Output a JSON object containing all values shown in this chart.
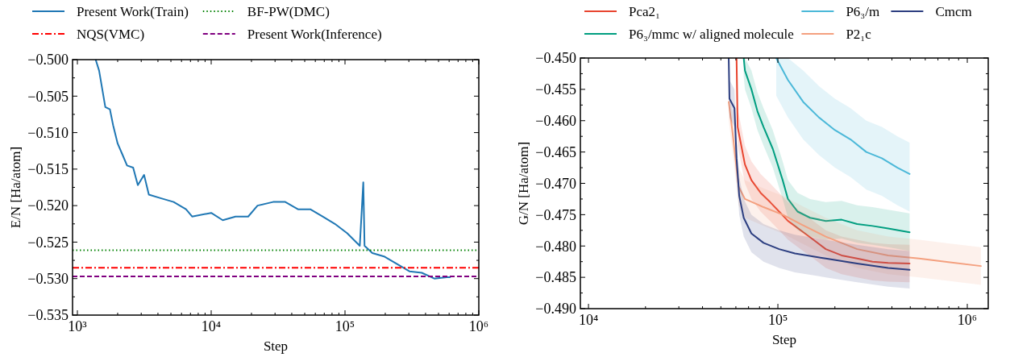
{
  "chart_data": [
    {
      "type": "line",
      "xlabel": "Step",
      "ylabel": "E/N [Ha/atom]",
      "log": "x",
      "grid": false,
      "legend": "top",
      "xlim": [
        920,
        1000000
      ],
      "ylim": [
        -0.535,
        -0.5
      ],
      "xticks": [
        {
          "value": 1000,
          "label": "10³"
        },
        {
          "value": 10000,
          "label": "10⁴"
        },
        {
          "value": 100000,
          "label": "10⁵"
        },
        {
          "value": 1000000,
          "label": "10⁶"
        }
      ],
      "yticks": [
        {
          "value": -0.535,
          "label": "−0.535"
        },
        {
          "value": -0.53,
          "label": "−0.530"
        },
        {
          "value": -0.525,
          "label": "−0.525"
        },
        {
          "value": -0.52,
          "label": "−0.520"
        },
        {
          "value": -0.515,
          "label": "−0.515"
        },
        {
          "value": -0.51,
          "label": "−0.510"
        },
        {
          "value": -0.505,
          "label": "−0.505"
        },
        {
          "value": -0.5,
          "label": "−0.500"
        }
      ],
      "series": [
        {
          "name": "Present Work(Train)",
          "color": "#1f77b4",
          "line_style": "solid",
          "x": [
            1370,
            1453,
            1617,
            1750,
            1850,
            2000,
            2170,
            2350,
            2610,
            2830,
            3150,
            3420,
            4230,
            5240,
            6480,
            7200,
            10000,
            12200,
            15200,
            18900,
            22200,
            29000,
            35800,
            44500,
            55000,
            68000,
            84000,
            104000,
            129000,
            137000,
            140000,
            160000,
            198000,
            245000,
            303000,
            375000,
            465000,
            575000,
            610000
          ],
          "values": [
            -0.5,
            -0.5015,
            -0.5065,
            -0.5068,
            -0.509,
            -0.5115,
            -0.513,
            -0.5145,
            -0.5148,
            -0.5172,
            -0.5158,
            -0.5185,
            -0.519,
            -0.5195,
            -0.5205,
            -0.5215,
            -0.521,
            -0.522,
            -0.5215,
            -0.5215,
            -0.52,
            -0.5195,
            -0.5195,
            -0.5205,
            -0.5205,
            -0.5215,
            -0.5225,
            -0.5238,
            -0.5255,
            -0.5168,
            -0.5255,
            -0.5265,
            -0.527,
            -0.528,
            -0.529,
            -0.5292,
            -0.53,
            -0.5298,
            -0.5298
          ]
        }
      ],
      "ref_lines": [
        {
          "axis": "y",
          "value": -0.5285,
          "label": "NQS(VMC)",
          "color": "#ff0000",
          "line_style": "dashdot"
        },
        {
          "axis": "y",
          "value": -0.5261,
          "label": "BF-PW(DMC)",
          "color": "#008000",
          "line_style": "dotted"
        },
        {
          "axis": "y",
          "value": -0.5297,
          "label": "Present Work(Inference)",
          "color": "#800080",
          "line_style": "dashed"
        }
      ]
    },
    {
      "type": "line",
      "xlabel": "Step",
      "ylabel": "G/N [Ha/atom]",
      "log": "x",
      "grid": false,
      "legend": "top",
      "xlim": [
        9060,
        1290000
      ],
      "ylim": [
        -0.49,
        -0.45
      ],
      "xticks": [
        {
          "value": 10000,
          "label": "10⁴"
        },
        {
          "value": 100000,
          "label": "10⁵"
        },
        {
          "value": 1000000,
          "label": "10⁶"
        }
      ],
      "yticks": [
        {
          "value": -0.49,
          "label": "−0.490"
        },
        {
          "value": -0.485,
          "label": "−0.485"
        },
        {
          "value": -0.48,
          "label": "−0.480"
        },
        {
          "value": -0.475,
          "label": "−0.475"
        },
        {
          "value": -0.47,
          "label": "−0.470"
        },
        {
          "value": -0.465,
          "label": "−0.465"
        },
        {
          "value": -0.46,
          "label": "−0.460"
        },
        {
          "value": -0.455,
          "label": "−0.455"
        },
        {
          "value": -0.45,
          "label": "−0.450"
        }
      ],
      "series": [
        {
          "name": "Pca2₁",
          "color": "#e8452f",
          "line_style": "solid",
          "x": [
            60500,
            61300,
            67000,
            72500,
            81000,
            91000,
            101500,
            113000,
            132000,
            154000,
            179000,
            217000,
            262000,
            316000,
            382000,
            496000
          ],
          "values": [
            -0.45,
            -0.461,
            -0.467,
            -0.4695,
            -0.4715,
            -0.473,
            -0.4745,
            -0.476,
            -0.4775,
            -0.479,
            -0.4805,
            -0.4815,
            -0.482,
            -0.4825,
            -0.4827,
            -0.4828
          ],
          "lower": [
            -0.453,
            -0.464,
            -0.47,
            -0.4725,
            -0.4745,
            -0.476,
            -0.4775,
            -0.479,
            -0.4805,
            -0.482,
            -0.4835,
            -0.4845,
            -0.485,
            -0.4855,
            -0.4857,
            -0.4858
          ],
          "upper": [
            -0.45,
            -0.458,
            -0.464,
            -0.4665,
            -0.4685,
            -0.47,
            -0.4715,
            -0.473,
            -0.4745,
            -0.476,
            -0.4775,
            -0.4785,
            -0.479,
            -0.4795,
            -0.4797,
            -0.4798
          ]
        },
        {
          "name": "P6₃/mmc w/ aligned molecule",
          "color": "#009e80",
          "line_style": "solid",
          "x": [
            66000,
            67000,
            72500,
            78000,
            84000,
            94000,
            106000,
            113000,
            127000,
            148000,
            179000,
            217000,
            262000,
            316000,
            382000,
            496000
          ],
          "values": [
            -0.45,
            -0.452,
            -0.455,
            -0.4585,
            -0.461,
            -0.4645,
            -0.4695,
            -0.4725,
            -0.4745,
            -0.4755,
            -0.476,
            -0.4758,
            -0.4765,
            -0.4768,
            -0.4772,
            -0.4778
          ],
          "lower": [
            -0.453,
            -0.455,
            -0.458,
            -0.4615,
            -0.464,
            -0.4675,
            -0.4725,
            -0.4755,
            -0.4775,
            -0.4785,
            -0.479,
            -0.4788,
            -0.4795,
            -0.4798,
            -0.4802,
            -0.4808
          ],
          "upper": [
            -0.45,
            -0.45,
            -0.452,
            -0.4555,
            -0.458,
            -0.4615,
            -0.4665,
            -0.4695,
            -0.4715,
            -0.4725,
            -0.473,
            -0.4728,
            -0.4735,
            -0.4738,
            -0.4742,
            -0.4748
          ]
        },
        {
          "name": "P6₃/m",
          "color": "#4bb8d8",
          "line_style": "solid",
          "x": [
            98000,
            113000,
            136000,
            165000,
            200000,
            242000,
            293000,
            354000,
            428000,
            496000
          ],
          "values": [
            -0.45,
            -0.4535,
            -0.457,
            -0.4595,
            -0.4615,
            -0.463,
            -0.465,
            -0.466,
            -0.4675,
            -0.4685
          ],
          "lower": [
            -0.456,
            -0.4595,
            -0.463,
            -0.4655,
            -0.4675,
            -0.469,
            -0.471,
            -0.472,
            -0.4735,
            -0.4745
          ],
          "upper": [
            -0.45,
            -0.45,
            -0.452,
            -0.4545,
            -0.4565,
            -0.458,
            -0.46,
            -0.461,
            -0.4625,
            -0.4635
          ]
        },
        {
          "name": "P2₁c",
          "color": "#f4a07f",
          "line_style": "solid",
          "x": [
            55000,
            57700,
            62000,
            67000,
            84000,
            106000,
            132000,
            179000,
            262000,
            382000,
            557000,
            810000,
            1180000
          ],
          "values": [
            -0.457,
            -0.462,
            -0.4705,
            -0.4725,
            -0.4738,
            -0.475,
            -0.4765,
            -0.4785,
            -0.4805,
            -0.4815,
            -0.482,
            -0.4826,
            -0.4832
          ],
          "lower": [
            -0.46,
            -0.465,
            -0.4735,
            -0.4755,
            -0.4768,
            -0.478,
            -0.4795,
            -0.4815,
            -0.4835,
            -0.4845,
            -0.485,
            -0.4856,
            -0.4862
          ],
          "upper": [
            -0.454,
            -0.459,
            -0.4675,
            -0.4695,
            -0.4708,
            -0.472,
            -0.4735,
            -0.4755,
            -0.4775,
            -0.4785,
            -0.479,
            -0.4796,
            -0.4802
          ]
        },
        {
          "name": "Cmcm",
          "color": "#2c3e80",
          "line_style": "solid",
          "x": [
            55000,
            55500,
            59000,
            60500,
            62500,
            66000,
            72500,
            84000,
            101500,
            123000,
            179000,
            262000,
            382000,
            496000
          ],
          "values": [
            -0.45,
            -0.4565,
            -0.458,
            -0.466,
            -0.472,
            -0.4755,
            -0.478,
            -0.4795,
            -0.4805,
            -0.4812,
            -0.482,
            -0.4828,
            -0.4835,
            -0.4838
          ],
          "lower": [
            -0.453,
            -0.4595,
            -0.461,
            -0.469,
            -0.475,
            -0.4785,
            -0.481,
            -0.4825,
            -0.4835,
            -0.4842,
            -0.485,
            -0.4858,
            -0.4865,
            -0.4868
          ],
          "upper": [
            -0.45,
            -0.4535,
            -0.455,
            -0.463,
            -0.469,
            -0.4725,
            -0.475,
            -0.4765,
            -0.4775,
            -0.4782,
            -0.479,
            -0.4798,
            -0.4805,
            -0.4808
          ]
        }
      ]
    }
  ]
}
